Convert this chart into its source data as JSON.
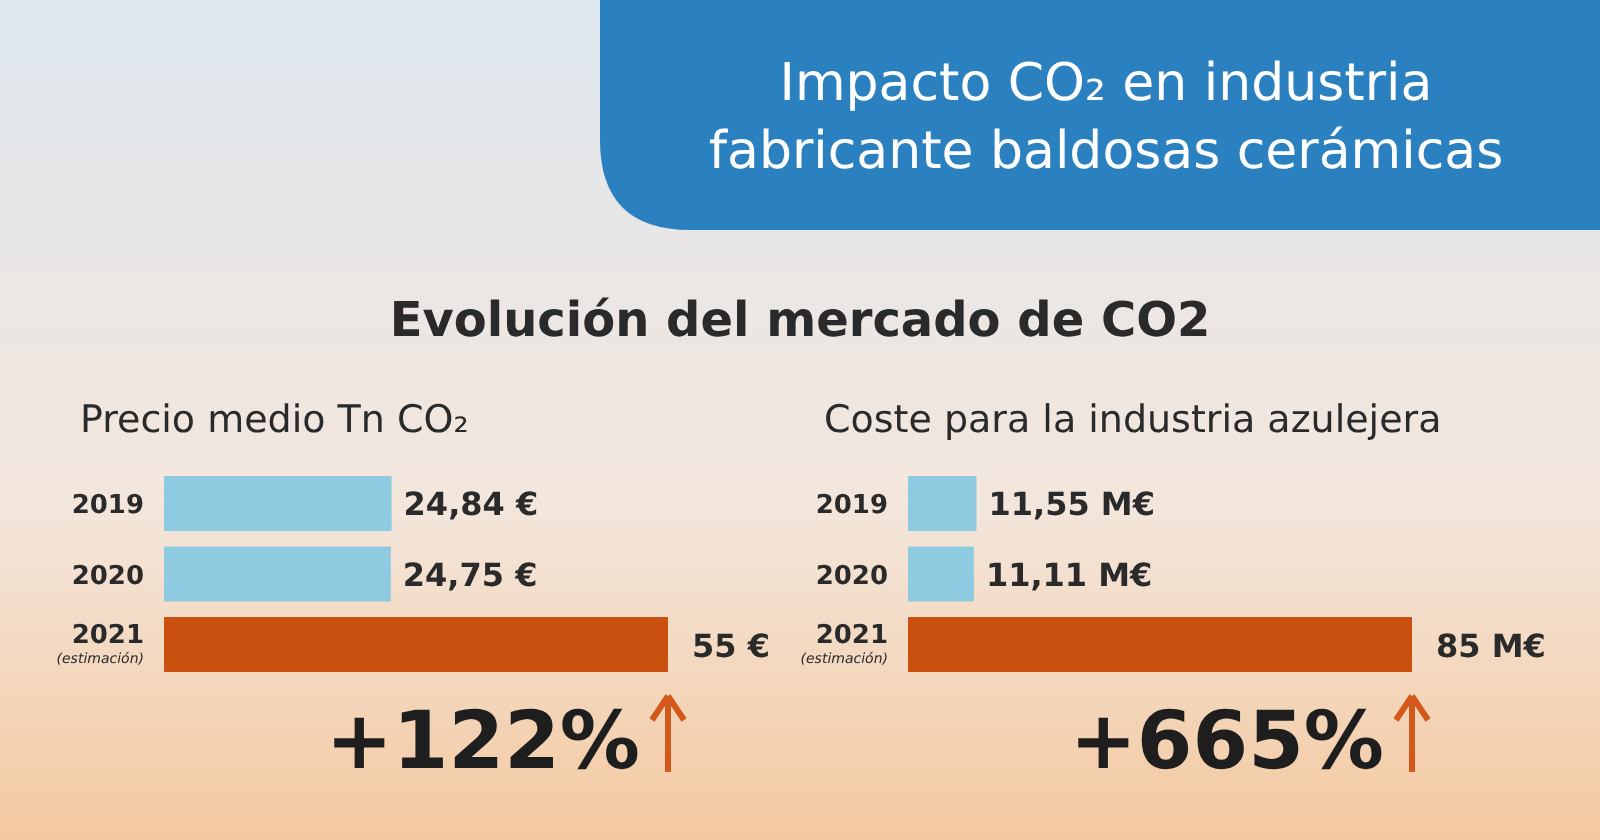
{
  "chart_data": [
    {
      "type": "other",
      "title": "Impacto CO₂ en industria fabricante baldosas cerámicas",
      "subtitle": "Evolución del mercado de CO2"
    },
    {
      "type": "bar",
      "orientation": "horizontal",
      "title": "Precio medio Tn CO₂",
      "categories": [
        "2019",
        "2020",
        "2021\n(estimación)"
      ],
      "values": [
        24.84,
        24.75,
        55
      ],
      "colors": [
        "#8ecae0",
        "#8ecae0",
        "#c9500e"
      ],
      "value_labels": [
        "24,84 €",
        "24,75 €",
        "55 €"
      ],
      "annotations": [
        "+122%"
      ]
    },
    {
      "type": "bar",
      "orientation": "horizontal",
      "title": "Coste para la industria azulejera",
      "categories": [
        "2019",
        "2020",
        "2021\n(estimación)"
      ],
      "values": [
        11.55,
        11.11,
        85
      ],
      "colors": [
        "#8ecae0",
        "#8ecae0",
        "#c9500e"
      ],
      "value_labels": [
        "11,55 M€",
        "11,11 M€",
        "85 M€"
      ],
      "annotations": [
        "+665%"
      ]
    }
  ]
}
